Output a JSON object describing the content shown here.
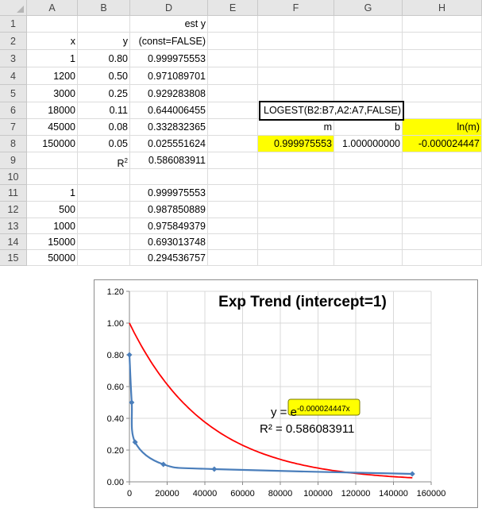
{
  "columns": [
    "A",
    "B",
    "D",
    "E",
    "F",
    "G",
    "H"
  ],
  "rows": [
    "1",
    "2",
    "3",
    "4",
    "5",
    "6",
    "7",
    "8",
    "9",
    "10",
    "11",
    "12",
    "13",
    "14",
    "15"
  ],
  "header_d1": "est y",
  "header_a2": "x",
  "header_b2": "y",
  "header_d2": "(const=FALSE)",
  "data_x": [
    "1",
    "1200",
    "3000",
    "18000",
    "45000",
    "150000"
  ],
  "data_y": [
    "0.80",
    "0.50",
    "0.25",
    "0.11",
    "0.08",
    "0.05"
  ],
  "est_y": [
    "0.999975553",
    "0.971089701",
    "0.929283808",
    "0.644006455",
    "0.332832365",
    "0.025551624"
  ],
  "r2_label": "R",
  "r2_label_sup": "2",
  "r2_value": "0.586083911",
  "pred_x": [
    "1",
    "500",
    "1000",
    "15000",
    "50000"
  ],
  "pred_y": [
    "0.999975553",
    "0.987850889",
    "0.975849379",
    "0.693013748",
    "0.294536757"
  ],
  "logest_formula": "LOGEST(B2:B7,A2:A7,FALSE)",
  "label_m": "m",
  "label_b": "b",
  "label_lnm": "ln(m)",
  "value_m": "0.999975553",
  "value_b": "1.000000000",
  "value_lnm": "-0.000024447",
  "colors": {
    "highlight": "#ffff00",
    "series": "#4a7ebb",
    "trend": "#ff0000",
    "grid": "#d9d9d9"
  },
  "chart_data": {
    "type": "scatter",
    "title": "Exp Trend (intercept=1)",
    "x_ticks": [
      "0",
      "20000",
      "40000",
      "60000",
      "80000",
      "100000",
      "120000",
      "140000",
      "160000"
    ],
    "y_ticks": [
      "0.00",
      "0.20",
      "0.40",
      "0.60",
      "0.80",
      "1.00",
      "1.20"
    ],
    "xlim": [
      0,
      160000
    ],
    "ylim": [
      0,
      1.2
    ],
    "grid": true,
    "series": [
      {
        "x": [
          1,
          1200,
          3000,
          18000,
          45000,
          150000
        ],
        "y": [
          0.8,
          0.5,
          0.25,
          0.11,
          0.08,
          0.05
        ]
      }
    ],
    "trendline": {
      "type": "exponential",
      "a": 1,
      "k": -2.4447e-05,
      "x_from": 0,
      "x_to": 150000
    },
    "equation_prefix": "y = ",
    "equation_base": "e",
    "equation_exp": "-0.000024447x",
    "r2_text": "R² = 0.586083911"
  }
}
